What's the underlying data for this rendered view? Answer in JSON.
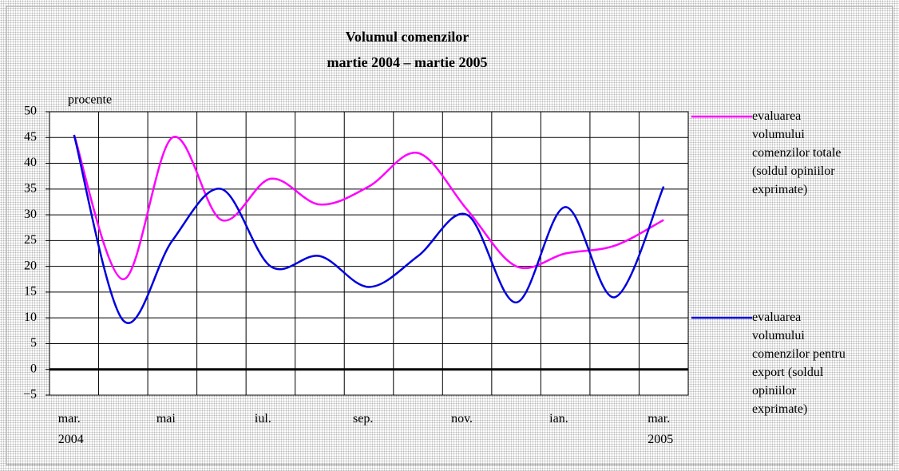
{
  "chart_data": {
    "type": "line",
    "title": "Volumul comenzilor",
    "subtitle": "martie 2004 – martie 2005",
    "y_label": "procente",
    "categories": [
      "mar.\n2004",
      null,
      "mai",
      null,
      "iul.",
      null,
      "sep.",
      null,
      "nov.",
      null,
      "ian.",
      null,
      "mar.\n2005"
    ],
    "series": [
      {
        "name": "evaluarea volumului comenzilor totale (soldul opiniilor exprimate)",
        "color": "#ff00ff",
        "values": [
          45.5,
          17.5,
          45,
          29,
          37,
          32,
          35.5,
          42,
          31,
          20,
          22.5,
          24,
          29
        ]
      },
      {
        "name": "evaluarea volumului comenzilor pentru export (soldul opiniilor exprimate)",
        "color": "#0000dd",
        "values": [
          45.5,
          9.5,
          25,
          35,
          20,
          22,
          16,
          22,
          30,
          13,
          31.5,
          14,
          35.5
        ]
      }
    ],
    "ylim": [
      -5,
      50
    ],
    "yticks": [
      {
        "value": -5,
        "label": "−5"
      },
      0,
      5,
      10,
      15,
      20,
      25,
      30,
      35,
      40,
      45,
      50
    ],
    "grid": true,
    "smooth": true,
    "legend": "right"
  }
}
